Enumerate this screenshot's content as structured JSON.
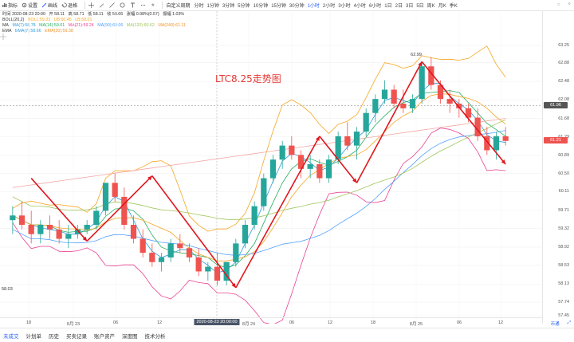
{
  "toolbar": {
    "items": [
      {
        "icon": "chart-type-icon",
        "label": "指标"
      },
      {
        "icon": "gear-icon",
        "label": "设置"
      },
      {
        "icon": "compare-icon",
        "label": "画线"
      },
      {
        "icon": "sync-icon",
        "label": "退格"
      }
    ],
    "shape_icons": [
      "crosshair-icon",
      "pencil-icon",
      "line-icon",
      "circle-icon",
      "text-icon",
      "more-icon"
    ],
    "star_label": "★",
    "mode_label": "自定义周期",
    "intervals": [
      "分时",
      "1分钟",
      "3分钟",
      "5分钟",
      "10分钟",
      "15分钟",
      "30分钟",
      "1小时",
      "2小时",
      "3小时",
      "4小时",
      "6小时",
      "1日",
      "2日",
      "3日",
      "5日",
      "周K",
      "月K",
      "季K"
    ],
    "active_interval": "1小时",
    "right_icons": [
      "○",
      "⌕"
    ]
  },
  "legend": {
    "line1": {
      "date": "时间 2020-08-23 20:00",
      "open": "开 58.11",
      "high": "高 58.71",
      "low": "低 58.11",
      "close": "收 58.66",
      "change": "涨幅 0.98%(0.57)",
      "amp": "振幅 1.03%"
    },
    "boll": {
      "name": "BOLL(20,2)",
      "mid": "BOLL:59.33",
      "ub": "UB:60.45",
      "lb": "LB:58.01"
    },
    "ma": {
      "name": "MA",
      "ma7": "MA(7):58.78",
      "ma14": "MA(14):59.01",
      "ma21": "MA(21):59.24",
      "ma90": "MA(90):60.06",
      "ma120": "MA(120):60.62",
      "ma240": "MA(240):61.11"
    },
    "ema": {
      "name": "EMA",
      "ema7": "EMA(7):58.66",
      "ema30": "EMA(30):59.38"
    }
  },
  "annotation": "LTC8.25走势图",
  "peak_label": "62.99",
  "low_label": "58.03",
  "colors": {
    "up": "#26a69a",
    "down": "#ef5350",
    "arrow": "#e0161e",
    "boll": "#f5a623",
    "ma7": "#2d9cdb",
    "ma14": "#27ae60",
    "ma21": "#e84393",
    "ma90": "#54a0ff",
    "ma120": "#a0c65a",
    "ma240": "#f0932b",
    "accent": "#2962ff"
  },
  "y_axis": [
    "63.25",
    "62.88",
    "62.48",
    "62.08",
    "61.68",
    "61.29",
    "60.89",
    "60.50",
    "60.11",
    "59.71",
    "59.32",
    "58.92",
    "58.53",
    "58.13",
    "57.74",
    "57.45"
  ],
  "price_tags": [
    {
      "label": "61.96",
      "color": "#555555"
    },
    {
      "label": "61.21",
      "color": "#ef5350"
    }
  ],
  "x_axis": [
    "18",
    "8月 23",
    "06",
    "12",
    "2020-08-23 20:00:00",
    "8月 24",
    "06",
    "12",
    "18",
    "8月 25",
    "06",
    "12"
  ],
  "bottom_right": [
    "币通",
    "⤢"
  ],
  "bottom_tabs": [
    "未成交",
    "计划单",
    "历史",
    "买卖记录",
    "账户资产",
    "深度图",
    "技术分析"
  ],
  "chart_data": {
    "type": "candlestick",
    "title": "LTC8.25走势图",
    "ylim": [
      57.45,
      63.3
    ],
    "candles": [
      [
        59.5,
        59.8,
        59.2,
        59.6
      ],
      [
        59.6,
        59.9,
        59.3,
        59.4
      ],
      [
        59.4,
        59.7,
        59.0,
        59.2
      ],
      [
        59.2,
        59.5,
        59.0,
        59.4
      ],
      [
        59.4,
        59.6,
        59.1,
        59.3
      ],
      [
        59.3,
        59.5,
        59.0,
        59.1
      ],
      [
        59.1,
        59.4,
        58.9,
        59.2
      ],
      [
        59.2,
        59.4,
        59.1,
        59.3
      ],
      [
        59.3,
        59.5,
        59.2,
        59.4
      ],
      [
        59.4,
        59.8,
        59.3,
        59.7
      ],
      [
        59.7,
        60.3,
        59.6,
        60.3
      ],
      [
        60.3,
        60.5,
        59.9,
        60.0
      ],
      [
        60.0,
        60.2,
        59.3,
        59.4
      ],
      [
        59.4,
        59.6,
        59.0,
        59.1
      ],
      [
        59.1,
        59.3,
        58.7,
        58.8
      ],
      [
        58.8,
        59.0,
        58.5,
        58.6
      ],
      [
        58.6,
        58.8,
        58.4,
        58.7
      ],
      [
        58.7,
        59.1,
        58.6,
        59.0
      ],
      [
        59.0,
        59.2,
        58.8,
        58.9
      ],
      [
        58.9,
        59.0,
        58.6,
        58.7
      ],
      [
        58.7,
        58.9,
        58.3,
        58.4
      ],
      [
        58.4,
        58.6,
        58.2,
        58.5
      ],
      [
        58.5,
        58.8,
        58.1,
        58.2
      ],
      [
        58.2,
        58.6,
        58.1,
        58.6
      ],
      [
        58.6,
        59.1,
        58.5,
        59.0
      ],
      [
        59.0,
        59.5,
        58.9,
        59.4
      ],
      [
        59.4,
        59.9,
        59.3,
        59.8
      ],
      [
        59.8,
        60.5,
        59.7,
        60.4
      ],
      [
        60.4,
        60.9,
        60.3,
        60.8
      ],
      [
        60.8,
        61.2,
        60.6,
        61.1
      ],
      [
        61.1,
        61.3,
        60.8,
        60.9
      ],
      [
        60.9,
        61.0,
        60.4,
        60.6
      ],
      [
        60.6,
        60.9,
        60.4,
        60.7
      ],
      [
        60.7,
        60.8,
        60.3,
        60.4
      ],
      [
        60.4,
        60.9,
        60.3,
        60.8
      ],
      [
        60.8,
        61.4,
        60.7,
        61.3
      ],
      [
        61.3,
        61.6,
        61.0,
        61.1
      ],
      [
        61.1,
        61.5,
        60.8,
        61.4
      ],
      [
        61.4,
        61.9,
        61.3,
        61.8
      ],
      [
        61.8,
        62.2,
        61.6,
        62.1
      ],
      [
        62.1,
        62.5,
        62.0,
        62.3
      ],
      [
        62.3,
        62.4,
        61.9,
        62.0
      ],
      [
        62.0,
        62.3,
        61.8,
        61.9
      ],
      [
        61.9,
        62.2,
        61.8,
        62.1
      ],
      [
        62.1,
        62.9,
        62.0,
        62.8
      ],
      [
        62.8,
        63.0,
        62.3,
        62.4
      ],
      [
        62.4,
        62.5,
        62.0,
        62.1
      ],
      [
        62.1,
        62.3,
        61.8,
        62.0
      ],
      [
        62.0,
        62.1,
        61.7,
        61.9
      ],
      [
        61.9,
        62.0,
        61.6,
        61.7
      ],
      [
        61.7,
        61.9,
        61.2,
        61.3
      ],
      [
        61.3,
        61.5,
        60.9,
        61.0
      ],
      [
        61.0,
        61.4,
        60.8,
        61.3
      ],
      [
        61.3,
        61.5,
        61.1,
        61.2
      ]
    ],
    "trend_arrows": "zig-zag downtrend / uptrend annotation",
    "xlabel": "",
    "ylabel": ""
  }
}
